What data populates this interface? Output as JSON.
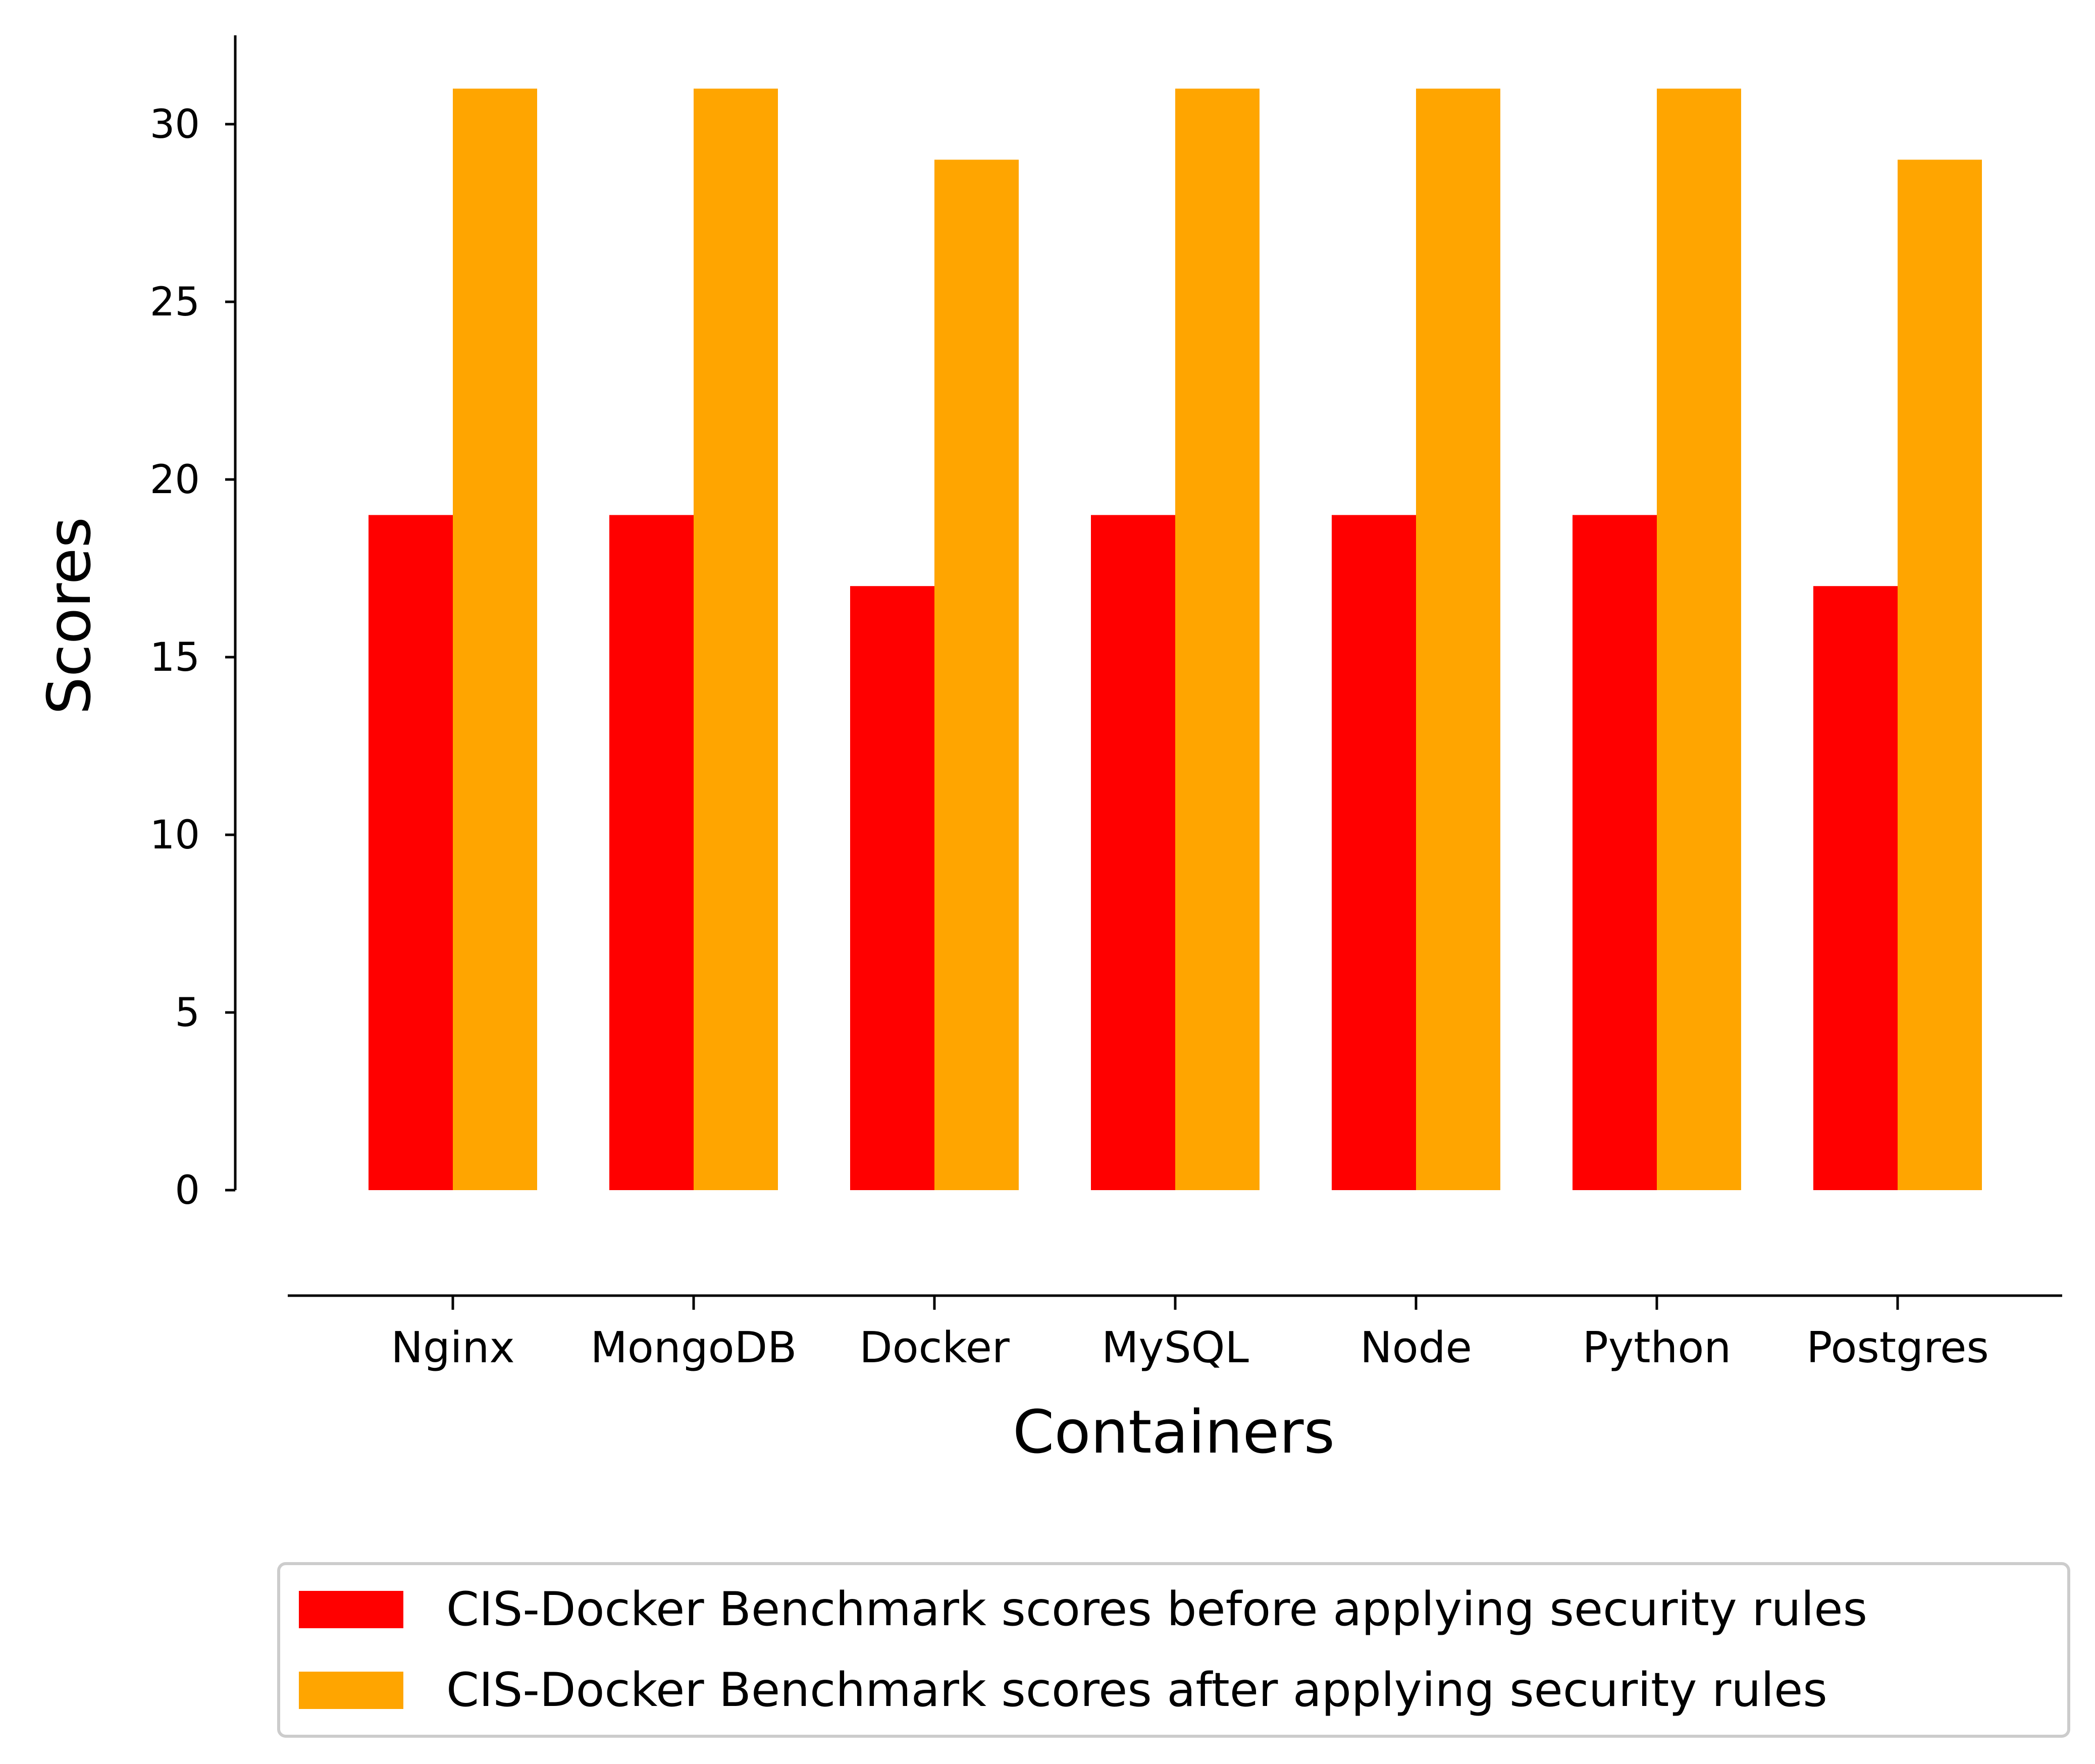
{
  "chart_data": {
    "type": "bar",
    "title": "",
    "xlabel": "Containers",
    "ylabel": "Scores",
    "categories": [
      "Nginx",
      "MongoDB",
      "Docker",
      "MySQL",
      "Node",
      "Python",
      "Postgres"
    ],
    "series": [
      {
        "name": "CIS-Docker Benchmark scores before applying security rules",
        "color": "#ff0000",
        "values": [
          19,
          19,
          17,
          19,
          19,
          19,
          17
        ]
      },
      {
        "name": "CIS-Docker Benchmark scores after applying security rules",
        "color": "#ffa500",
        "values": [
          31,
          31,
          29,
          31,
          31,
          31,
          29
        ]
      }
    ],
    "ylim": [
      0,
      32.5
    ],
    "yticks": [
      "0",
      "5",
      "10",
      "15",
      "20",
      "25",
      "30"
    ],
    "grid": false,
    "legend_position": "bottom"
  }
}
